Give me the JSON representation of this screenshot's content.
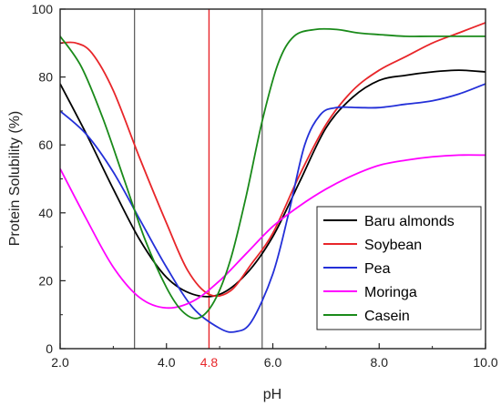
{
  "chart_data": {
    "type": "line",
    "title": "",
    "xlabel": "pH",
    "ylabel": "Protein Solubility (%)",
    "xlim": [
      2.0,
      10.0
    ],
    "ylim": [
      0,
      100
    ],
    "xticks": [
      "2.0",
      "4.0",
      "6.0",
      "8.0",
      "10.0"
    ],
    "yticks": [
      "0",
      "20",
      "40",
      "60",
      "80",
      "100"
    ],
    "highlight_line": {
      "x": 4.8,
      "label": "4.8",
      "color": "#e8262a"
    },
    "reference_lines": [
      3.4,
      5.8
    ],
    "legend_position": "bottom-right",
    "series": [
      {
        "name": "Baru almonds",
        "color": "#000000",
        "points": [
          [
            2.0,
            78
          ],
          [
            2.5,
            63
          ],
          [
            3.0,
            47
          ],
          [
            3.5,
            32
          ],
          [
            4.0,
            21
          ],
          [
            4.5,
            16
          ],
          [
            5.0,
            16
          ],
          [
            5.5,
            22
          ],
          [
            6.0,
            33
          ],
          [
            6.5,
            49
          ],
          [
            7.0,
            65
          ],
          [
            7.5,
            74
          ],
          [
            8.0,
            79
          ],
          [
            8.5,
            80.5
          ],
          [
            9.0,
            81.5
          ],
          [
            9.5,
            82
          ],
          [
            10.0,
            81.5
          ]
        ]
      },
      {
        "name": "Soybean",
        "color": "#e8262a",
        "points": [
          [
            2.0,
            90
          ],
          [
            2.3,
            90
          ],
          [
            2.6,
            87
          ],
          [
            3.0,
            76
          ],
          [
            3.5,
            56
          ],
          [
            4.0,
            37
          ],
          [
            4.4,
            23
          ],
          [
            4.8,
            16
          ],
          [
            5.2,
            17
          ],
          [
            5.6,
            25
          ],
          [
            6.0,
            34
          ],
          [
            6.5,
            51
          ],
          [
            7.0,
            66
          ],
          [
            7.5,
            76
          ],
          [
            8.0,
            82
          ],
          [
            8.5,
            86
          ],
          [
            9.0,
            90
          ],
          [
            9.5,
            93
          ],
          [
            10.0,
            96
          ]
        ]
      },
      {
        "name": "Pea",
        "color": "#2430d8",
        "points": [
          [
            2.0,
            70
          ],
          [
            2.5,
            63
          ],
          [
            3.0,
            52
          ],
          [
            3.5,
            38
          ],
          [
            4.0,
            24
          ],
          [
            4.5,
            12
          ],
          [
            5.0,
            6
          ],
          [
            5.3,
            5
          ],
          [
            5.6,
            8
          ],
          [
            6.0,
            22
          ],
          [
            6.3,
            40
          ],
          [
            6.6,
            60
          ],
          [
            6.9,
            69
          ],
          [
            7.2,
            71
          ],
          [
            7.6,
            71
          ],
          [
            8.0,
            71
          ],
          [
            8.5,
            72
          ],
          [
            9.0,
            73
          ],
          [
            9.5,
            75
          ],
          [
            10.0,
            78
          ]
        ]
      },
      {
        "name": "Moringa",
        "color": "#ff00ff",
        "points": [
          [
            2.0,
            53
          ],
          [
            2.5,
            38
          ],
          [
            3.0,
            24
          ],
          [
            3.5,
            15
          ],
          [
            4.0,
            12
          ],
          [
            4.5,
            14
          ],
          [
            5.0,
            20
          ],
          [
            5.5,
            28
          ],
          [
            6.0,
            36
          ],
          [
            6.5,
            42
          ],
          [
            7.0,
            47
          ],
          [
            7.5,
            51
          ],
          [
            8.0,
            54
          ],
          [
            8.5,
            55.5
          ],
          [
            9.0,
            56.5
          ],
          [
            9.5,
            57
          ],
          [
            10.0,
            57
          ]
        ]
      },
      {
        "name": "Casein",
        "color": "#1a8a1a",
        "points": [
          [
            2.0,
            92
          ],
          [
            2.4,
            83
          ],
          [
            2.8,
            68
          ],
          [
            3.2,
            50
          ],
          [
            3.6,
            32
          ],
          [
            4.0,
            18
          ],
          [
            4.3,
            11
          ],
          [
            4.6,
            9
          ],
          [
            4.9,
            14
          ],
          [
            5.2,
            26
          ],
          [
            5.5,
            45
          ],
          [
            5.8,
            67
          ],
          [
            6.1,
            84
          ],
          [
            6.4,
            92
          ],
          [
            6.8,
            94
          ],
          [
            7.2,
            94
          ],
          [
            7.6,
            93
          ],
          [
            8.0,
            92.5
          ],
          [
            8.5,
            92
          ],
          [
            9.0,
            92
          ],
          [
            10.0,
            92
          ]
        ]
      }
    ]
  }
}
